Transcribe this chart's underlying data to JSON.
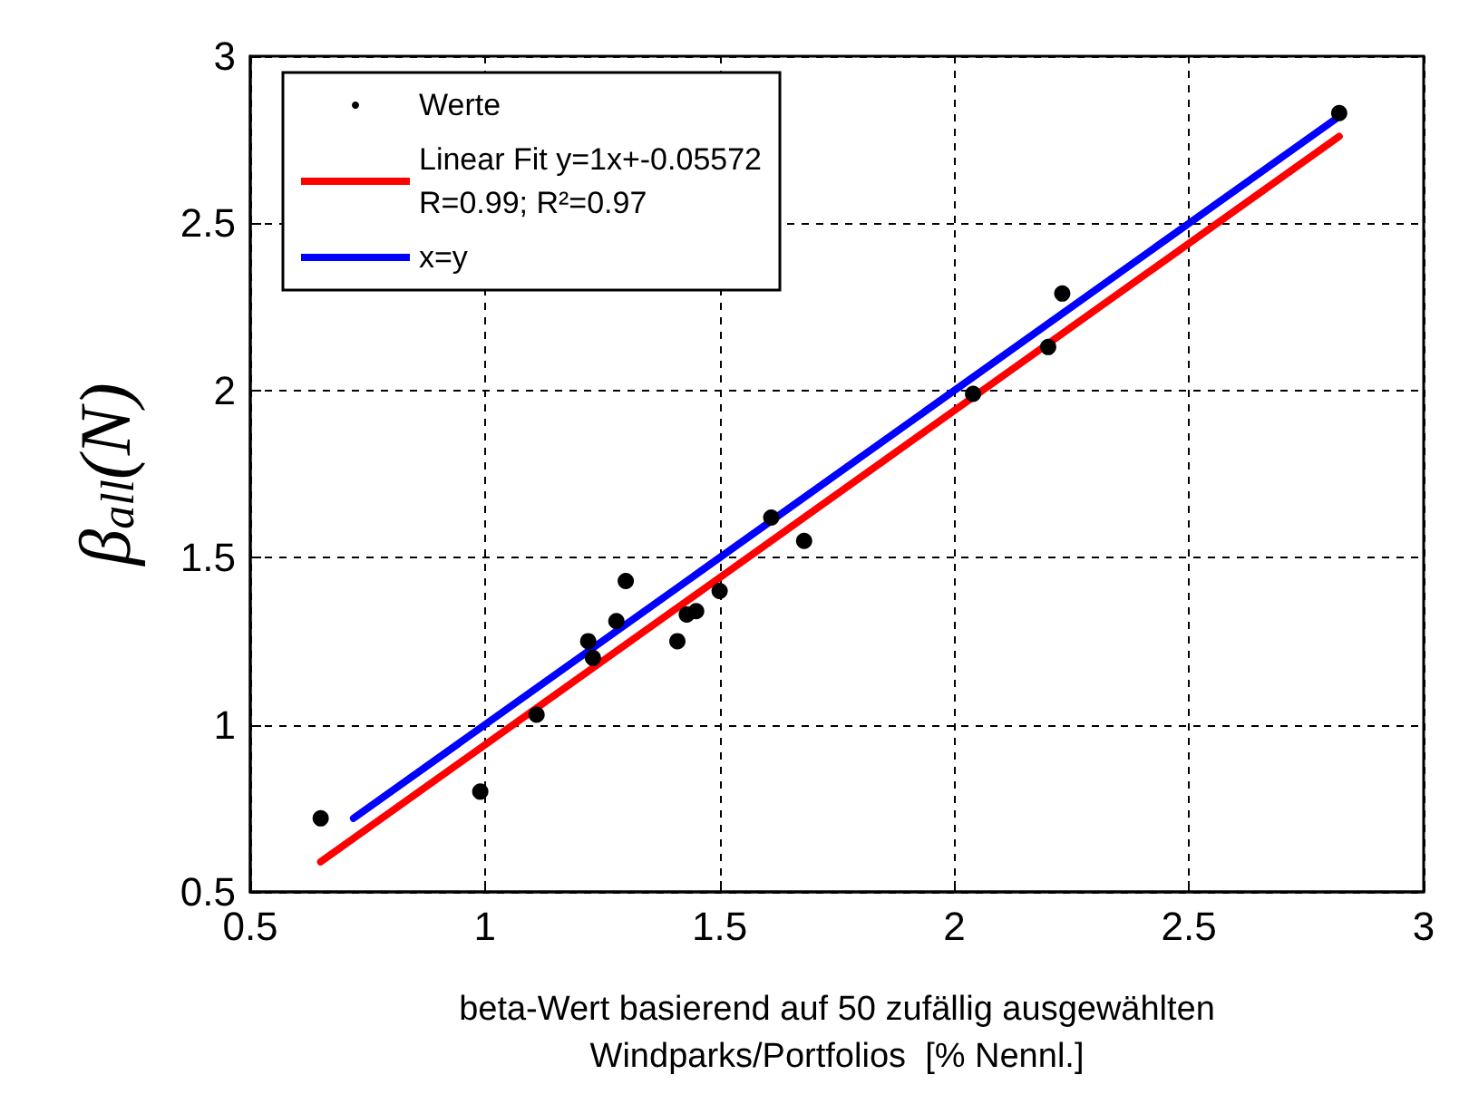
{
  "chart_data": {
    "type": "scatter",
    "xlabel": "beta-Wert basierend auf 50 zufällig ausgewählten\nWindparks/Portfolios  [% Nennl.]",
    "ylabel": "β$_{all}$(N)",
    "series": [
      {
        "name": "Werte",
        "color": "#000000",
        "marker": "circle",
        "x": [
          0.65,
          0.99,
          1.11,
          1.22,
          1.23,
          1.28,
          1.3,
          1.41,
          1.43,
          1.45,
          1.5,
          1.61,
          1.68,
          2.04,
          2.2,
          2.23,
          2.82
        ],
        "values": [
          0.72,
          0.8,
          1.03,
          1.25,
          1.2,
          1.31,
          1.43,
          1.25,
          1.33,
          1.34,
          1.4,
          1.62,
          1.55,
          1.99,
          2.13,
          2.29,
          2.83
        ]
      },
      {
        "name": "Linear Fit y=1x+-0.05572\nR=0.99; R²=0.97",
        "type": "line",
        "color": "#ff0000",
        "marker": "none",
        "line_style": "solid",
        "x": [
          0.65,
          2.82
        ],
        "values": [
          0.59,
          2.76
        ]
      },
      {
        "name": "x=y",
        "type": "line",
        "color": "#0000ff",
        "marker": "none",
        "line_style": "solid",
        "x": [
          0.72,
          2.82
        ],
        "values": [
          0.72,
          2.82
        ]
      }
    ],
    "xlim": [
      0.5,
      3
    ],
    "xticks": [
      0.5,
      1,
      1.5,
      2,
      2.5,
      3
    ],
    "ylim": [
      0.5,
      3
    ],
    "yticks": [
      0.5,
      1,
      1.5,
      2,
      2.5,
      3
    ],
    "grid": true,
    "legend": "top left"
  }
}
